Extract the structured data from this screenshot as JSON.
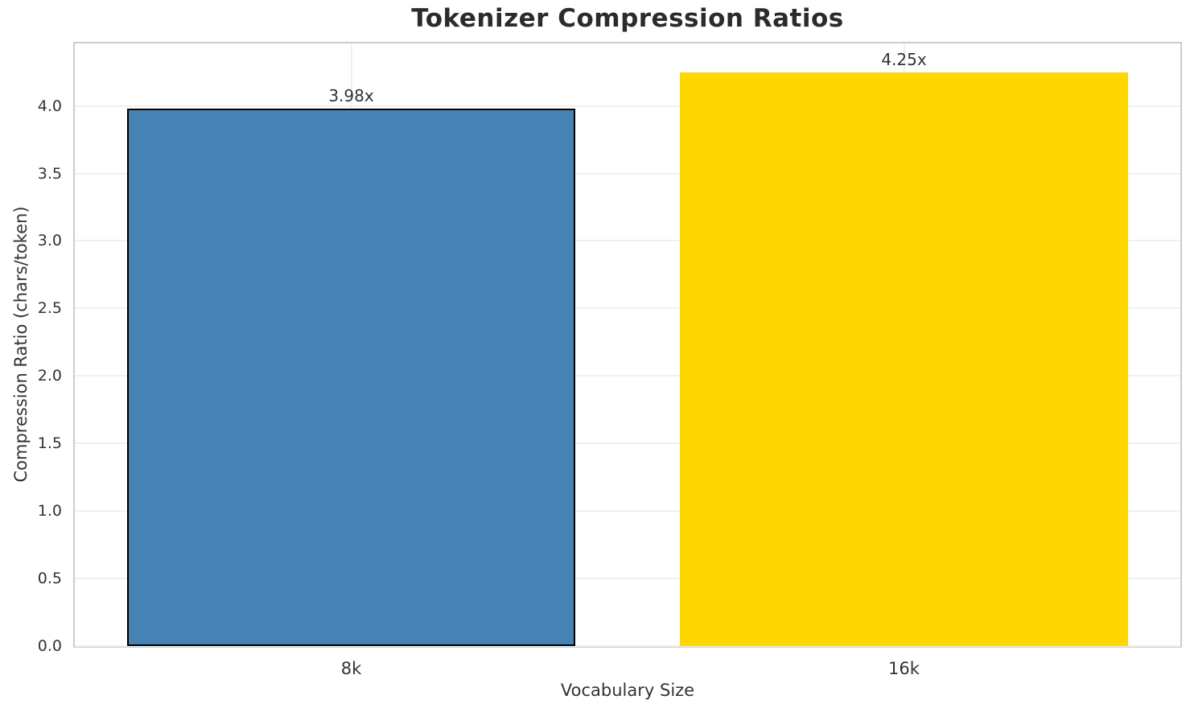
{
  "chart_data": {
    "type": "bar",
    "title": "Tokenizer Compression Ratios",
    "xlabel": "Vocabulary Size",
    "ylabel": "Compression Ratio (chars/token)",
    "categories": [
      "8k",
      "16k"
    ],
    "values": [
      3.98,
      4.25
    ],
    "value_labels": [
      "3.98x",
      "4.25x"
    ],
    "bar_colors": [
      "#4682B4",
      "#FFD700"
    ],
    "bar_edge_colors": [
      "#000000",
      "none"
    ],
    "x_positions": [
      0,
      1
    ],
    "xlim": [
      -0.5,
      1.5
    ],
    "bar_width": 0.81,
    "ylim": [
      0,
      4.4625
    ],
    "yticks": [
      0,
      0.5,
      1,
      1.5,
      2,
      2.5,
      3,
      3.5,
      4
    ],
    "ytick_labels": [
      "0.0",
      "0.5",
      "1.0",
      "1.5",
      "2.0",
      "2.5",
      "3.0",
      "3.5",
      "4.0"
    ],
    "grid": true,
    "legend": "none"
  }
}
